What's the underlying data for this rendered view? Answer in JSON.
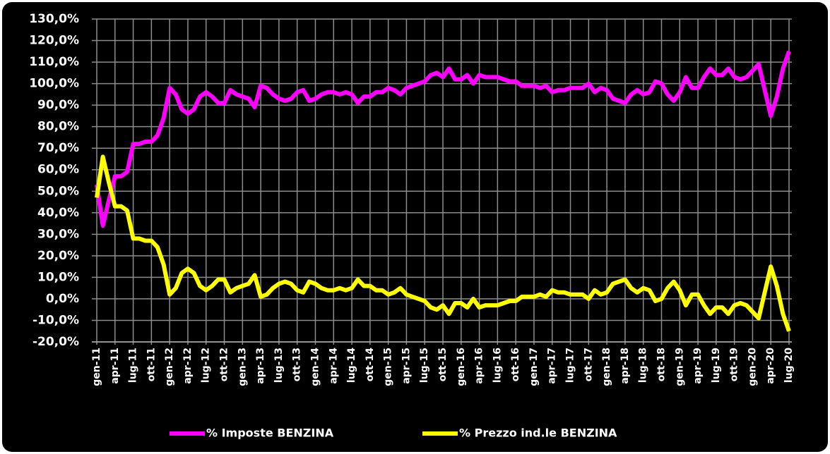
{
  "chart_data": {
    "type": "line",
    "categories": [
      "gen-11",
      null,
      null,
      "apr-11",
      null,
      null,
      "lug-11",
      null,
      null,
      "ott-11",
      null,
      null,
      "gen-12",
      null,
      null,
      "apr-12",
      null,
      null,
      "lug-12",
      null,
      null,
      "ott-12",
      null,
      null,
      "gen-13",
      null,
      null,
      "apr-13",
      null,
      null,
      "lug-13",
      null,
      null,
      "ott-13",
      null,
      null,
      "gen-14",
      null,
      null,
      "apr-14",
      null,
      null,
      "lug-14",
      null,
      null,
      "ott-14",
      null,
      null,
      "gen-15",
      null,
      null,
      "apr-15",
      null,
      null,
      "lug-15",
      null,
      null,
      "ott-15",
      null,
      null,
      "gen-16",
      null,
      null,
      "apr-16",
      null,
      null,
      "lug-16",
      null,
      null,
      "ott-16",
      null,
      null,
      "gen-17",
      null,
      null,
      "apr-17",
      null,
      null,
      "lug-17",
      null,
      null,
      "ott-17",
      null,
      null,
      "gen-18",
      null,
      null,
      "apr-18",
      null,
      null,
      "lug-18",
      null,
      null,
      "ott-18",
      null,
      null,
      "gen-19",
      null,
      null,
      "apr-19",
      null,
      null,
      "lug-19",
      null,
      null,
      "ott-19",
      null,
      null,
      "gen-20",
      null,
      null,
      "apr-20",
      null,
      null,
      "lug-20"
    ],
    "series": [
      {
        "name": "% Imposte BENZINA",
        "color": "#ff00ff",
        "values": [
          53,
          34,
          46,
          57,
          57,
          59,
          72,
          72,
          73,
          73,
          76,
          84,
          98,
          95,
          88,
          86,
          88,
          94,
          96,
          94,
          91,
          91,
          97,
          95,
          94,
          93,
          89,
          99,
          98,
          95,
          93,
          92,
          93,
          96,
          97,
          92,
          93,
          95,
          96,
          96,
          95,
          96,
          95,
          91,
          94,
          94,
          96,
          96,
          98,
          97,
          95,
          98,
          99,
          100,
          101,
          104,
          105,
          103,
          107,
          102,
          102,
          104,
          100,
          104,
          103,
          103,
          103,
          102,
          101,
          101,
          99,
          99,
          99,
          98,
          99,
          96,
          97,
          97,
          98,
          98,
          98,
          100,
          96,
          98,
          97,
          93,
          92,
          91,
          95,
          97,
          95,
          96,
          101,
          100,
          95,
          92,
          96,
          103,
          98,
          98,
          103,
          107,
          104,
          104,
          107,
          103,
          102,
          103,
          106,
          109,
          97,
          85,
          94,
          107,
          115
        ]
      },
      {
        "name": "% Prezzo ind.le BENZINA",
        "color": "#ffff00",
        "values": [
          47,
          66,
          54,
          43,
          43,
          41,
          28,
          28,
          27,
          27,
          24,
          16,
          2,
          5,
          12,
          14,
          12,
          6,
          4,
          6,
          9,
          9,
          3,
          5,
          6,
          7,
          11,
          1,
          2,
          5,
          7,
          8,
          7,
          4,
          3,
          8,
          7,
          5,
          4,
          4,
          5,
          4,
          5,
          9,
          6,
          6,
          4,
          4,
          2,
          3,
          5,
          2,
          1,
          0,
          -1,
          -4,
          -5,
          -3,
          -7,
          -2,
          -2,
          -4,
          0,
          -4,
          -3,
          -3,
          -3,
          -2,
          -1,
          -1,
          1,
          1,
          1,
          2,
          1,
          4,
          3,
          3,
          2,
          2,
          2,
          0,
          4,
          2,
          3,
          7,
          8,
          9,
          5,
          3,
          5,
          4,
          -1,
          0,
          5,
          8,
          4,
          -3,
          2,
          2,
          -3,
          -7,
          -4,
          -4,
          -7,
          -3,
          -2,
          -3,
          -6,
          -9,
          3,
          15,
          6,
          -7,
          -15
        ]
      }
    ],
    "ylim": [
      -20,
      130
    ],
    "yticks": [
      {
        "value": -20,
        "label": "-20,0%"
      },
      {
        "value": -10,
        "label": "-10,0%"
      },
      {
        "value": 0,
        "label": "0,0%"
      },
      {
        "value": 10,
        "label": "10,0%"
      },
      {
        "value": 20,
        "label": "20,0%"
      },
      {
        "value": 30,
        "label": "30,0%"
      },
      {
        "value": 40,
        "label": "40,0%"
      },
      {
        "value": 50,
        "label": "50,0%"
      },
      {
        "value": 60,
        "label": "60,0%"
      },
      {
        "value": 70,
        "label": "70,0%"
      },
      {
        "value": 80,
        "label": "80,0%"
      },
      {
        "value": 90,
        "label": "90,0%"
      },
      {
        "value": 100,
        "label": "100,0%"
      },
      {
        "value": 110,
        "label": "110,0%"
      },
      {
        "value": 120,
        "label": "120,0%"
      },
      {
        "value": 130,
        "label": "130,0%"
      }
    ],
    "grid": true
  }
}
